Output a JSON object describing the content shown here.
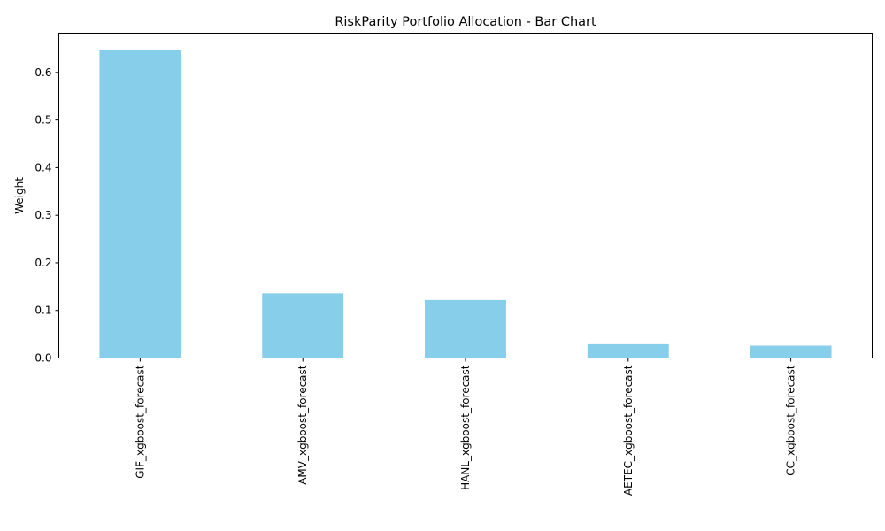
{
  "chart_data": {
    "type": "bar",
    "title": "RiskParity Portfolio Allocation - Bar Chart",
    "xlabel": "",
    "ylabel": "Weight",
    "categories": [
      "GIF_xgboost_forecast",
      "AMV_xgboost_forecast",
      "HANL_xgboost_forecast",
      "AETEC_xgboost_forecast",
      "CC_xgboost_forecast"
    ],
    "values": [
      0.648,
      0.136,
      0.122,
      0.029,
      0.026
    ],
    "ylim": [
      0,
      0.6825
    ],
    "yticks": [
      "0.0",
      "0.1",
      "0.2",
      "0.3",
      "0.4",
      "0.5",
      "0.6"
    ],
    "bar_color": "#87ceeb",
    "grid": false,
    "legend": "none"
  }
}
